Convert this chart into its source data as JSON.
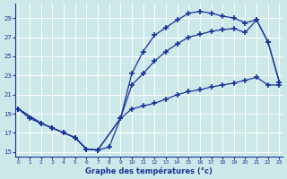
{
  "title": "Graphe des températures (°c)",
  "background_color": "#cce8e8",
  "line_color": "#1a3399",
  "ylim": [
    14.5,
    30.5
  ],
  "xlim": [
    -0.3,
    23.3
  ],
  "yticks": [
    15,
    17,
    19,
    21,
    23,
    25,
    27,
    29
  ],
  "xticks": [
    0,
    1,
    2,
    3,
    4,
    5,
    6,
    7,
    8,
    9,
    10,
    11,
    12,
    13,
    14,
    15,
    16,
    17,
    18,
    19,
    20,
    21,
    22,
    23
  ],
  "line1_x": [
    0,
    1,
    2,
    3,
    4,
    5,
    6,
    7,
    8,
    9,
    10,
    11,
    12,
    13,
    14,
    15,
    16,
    17,
    18,
    19,
    20,
    21,
    22,
    23
  ],
  "line1_y": [
    19.5,
    18.5,
    18.0,
    17.5,
    17.0,
    16.5,
    15.3,
    15.2,
    15.5,
    18.5,
    19.5,
    19.8,
    20.1,
    20.5,
    21.0,
    21.3,
    21.5,
    21.8,
    22.0,
    22.2,
    22.5,
    22.8,
    22.0,
    22.0
  ],
  "line2_x": [
    0,
    2,
    3,
    4,
    5,
    6,
    7,
    9,
    10,
    11,
    12,
    13,
    14,
    15,
    16,
    17,
    18,
    19,
    20,
    21,
    22,
    23
  ],
  "line2_y": [
    19.5,
    18.0,
    17.5,
    17.0,
    16.5,
    15.3,
    15.2,
    18.5,
    23.2,
    25.5,
    27.2,
    28.0,
    28.8,
    29.5,
    29.7,
    29.5,
    29.2,
    29.0,
    28.5,
    28.8,
    26.5,
    22.3
  ],
  "line3_x": [
    0,
    2,
    3,
    4,
    5,
    6,
    7,
    9,
    10,
    11,
    12,
    13,
    14,
    15,
    16,
    17,
    18,
    19,
    20,
    21,
    22,
    23
  ],
  "line3_y": [
    19.5,
    18.0,
    17.5,
    17.0,
    16.5,
    15.3,
    15.2,
    18.5,
    22.0,
    23.2,
    24.5,
    25.5,
    26.3,
    27.0,
    27.3,
    27.6,
    27.8,
    27.9,
    27.5,
    28.8,
    26.5,
    22.3
  ]
}
